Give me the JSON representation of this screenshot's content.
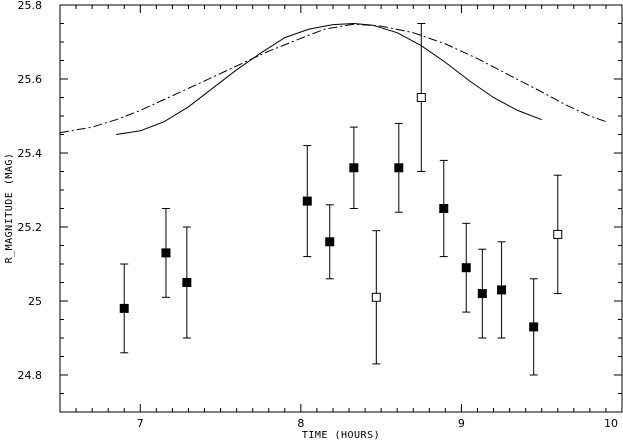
{
  "chart_data": {
    "type": "scatter",
    "title": "",
    "xlabel": "TIME (HOURS)",
    "ylabel": "R_MAGNITUDE (MAG)",
    "xlim": [
      6.5,
      10
    ],
    "ylim": [
      24.7,
      25.8
    ],
    "grid": false,
    "legend": "none",
    "x_ticks": [
      {
        "value": 7,
        "label": "7"
      },
      {
        "value": 8,
        "label": "8"
      },
      {
        "value": 9,
        "label": "9"
      },
      {
        "value": 10,
        "label": "10"
      }
    ],
    "y_ticks": [
      {
        "value": 24.8,
        "label": "24.8"
      },
      {
        "value": 25.0,
        "label": "25"
      },
      {
        "value": 25.2,
        "label": "25.2"
      },
      {
        "value": 25.4,
        "label": "25.4"
      },
      {
        "value": 25.6,
        "label": "25.6"
      },
      {
        "value": 25.8,
        "label": "25.8"
      }
    ],
    "series": [
      {
        "marker": "filled-square",
        "color": "#000000",
        "points": [
          {
            "x": 6.9,
            "y": 24.98,
            "err_low": 24.86,
            "err_high": 25.1
          },
          {
            "x": 7.16,
            "y": 25.13,
            "err_low": 25.01,
            "err_high": 25.25
          },
          {
            "x": 7.29,
            "y": 25.05,
            "err_low": 24.9,
            "err_high": 25.2
          },
          {
            "x": 8.04,
            "y": 25.27,
            "err_low": 25.12,
            "err_high": 25.42
          },
          {
            "x": 8.18,
            "y": 25.16,
            "err_low": 25.06,
            "err_high": 25.26
          },
          {
            "x": 8.33,
            "y": 25.36,
            "err_low": 25.25,
            "err_high": 25.47
          },
          {
            "x": 8.61,
            "y": 25.36,
            "err_low": 25.24,
            "err_high": 25.48
          },
          {
            "x": 8.89,
            "y": 25.25,
            "err_low": 25.12,
            "err_high": 25.38
          },
          {
            "x": 9.03,
            "y": 25.09,
            "err_low": 24.97,
            "err_high": 25.21
          },
          {
            "x": 9.13,
            "y": 25.02,
            "err_low": 24.9,
            "err_high": 25.14
          },
          {
            "x": 9.25,
            "y": 25.03,
            "err_low": 24.9,
            "err_high": 25.16
          },
          {
            "x": 9.45,
            "y": 24.93,
            "err_low": 24.8,
            "err_high": 25.06
          }
        ]
      },
      {
        "marker": "open-square",
        "color": "#000000",
        "points": [
          {
            "x": 8.47,
            "y": 25.01,
            "err_low": 24.83,
            "err_high": 25.19
          },
          {
            "x": 8.75,
            "y": 25.55,
            "err_low": 25.35,
            "err_high": 25.75
          },
          {
            "x": 9.6,
            "y": 25.18,
            "err_low": 25.02,
            "err_high": 25.34
          }
        ]
      }
    ],
    "curves": [
      {
        "style": "solid",
        "color": "#000000",
        "points": [
          [
            6.85,
            25.45
          ],
          [
            7.0,
            25.46
          ],
          [
            7.15,
            25.485
          ],
          [
            7.3,
            25.525
          ],
          [
            7.45,
            25.575
          ],
          [
            7.6,
            25.625
          ],
          [
            7.75,
            25.67
          ],
          [
            7.9,
            25.712
          ],
          [
            8.05,
            25.735
          ],
          [
            8.2,
            25.747
          ],
          [
            8.33,
            25.75
          ],
          [
            8.45,
            25.745
          ],
          [
            8.6,
            25.725
          ],
          [
            8.75,
            25.69
          ],
          [
            8.9,
            25.645
          ],
          [
            9.05,
            25.595
          ],
          [
            9.2,
            25.55
          ],
          [
            9.35,
            25.515
          ],
          [
            9.5,
            25.49
          ]
        ]
      },
      {
        "style": "dash-dot",
        "color": "#000000",
        "points": [
          [
            6.5,
            25.455
          ],
          [
            6.7,
            25.47
          ],
          [
            6.85,
            25.49
          ],
          [
            7.0,
            25.515
          ],
          [
            7.2,
            25.555
          ],
          [
            7.4,
            25.595
          ],
          [
            7.6,
            25.635
          ],
          [
            7.8,
            25.675
          ],
          [
            8.0,
            25.71
          ],
          [
            8.15,
            25.735
          ],
          [
            8.33,
            25.748
          ],
          [
            8.5,
            25.743
          ],
          [
            8.7,
            25.725
          ],
          [
            8.9,
            25.695
          ],
          [
            9.1,
            25.655
          ],
          [
            9.3,
            25.61
          ],
          [
            9.5,
            25.565
          ],
          [
            9.65,
            25.53
          ],
          [
            9.8,
            25.5
          ],
          [
            9.9,
            25.485
          ]
        ]
      }
    ]
  }
}
